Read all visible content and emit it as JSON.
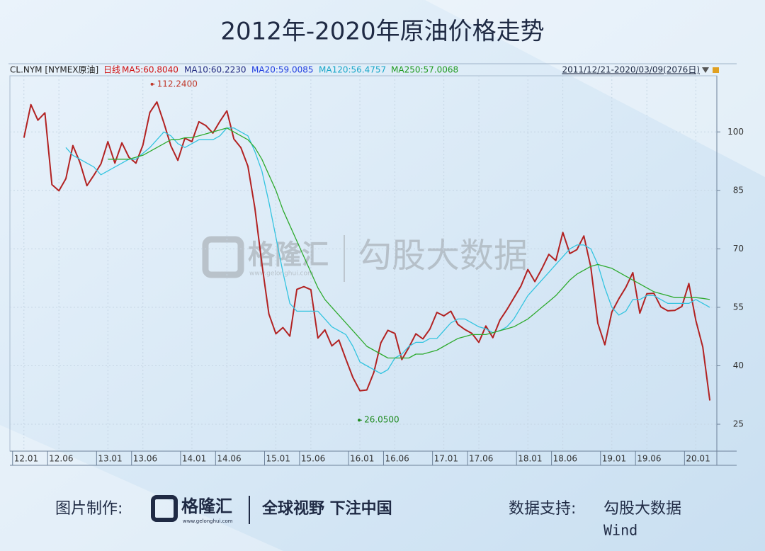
{
  "title": "2012年-2020年原油价格走势",
  "header": {
    "symbol": "CL.NYM [NYMEX原油]",
    "period": "日线",
    "ma5": "MA5:60.8040",
    "ma10": "MA10:60.2230",
    "ma20": "MA20:59.0085",
    "ma120": "MA120:56.4757",
    "ma250": "MA250:57.0068",
    "range": "2011/12/21-2020/03/09(2076日)"
  },
  "watermark": {
    "brand": "格隆汇",
    "url": "www.gelonghui.com",
    "name": "勾股大数据"
  },
  "footer": {
    "made_by": "图片制作:",
    "brand": "格隆汇",
    "url": "www.gelonghui.com",
    "slogan": "全球视野 下注中国",
    "source_label": "数据支持:",
    "source_1": "勾股大数据",
    "source_2": "Wind"
  },
  "chart_data": {
    "type": "line",
    "x": [
      0,
      1,
      2,
      3,
      4,
      5,
      6,
      7,
      8,
      9,
      10,
      11,
      12,
      13,
      14,
      15,
      16,
      17,
      18,
      19,
      20,
      21,
      22,
      23,
      24,
      25,
      26,
      27,
      28,
      29,
      30,
      31,
      32,
      33,
      34,
      35,
      36,
      37,
      38,
      39,
      40,
      41,
      42,
      43,
      44,
      45,
      46,
      47,
      48,
      49,
      50,
      51,
      52,
      53,
      54,
      55,
      56,
      57,
      58,
      59,
      60,
      61,
      62,
      63,
      64,
      65,
      66,
      67,
      68,
      69,
      70,
      71,
      72,
      73,
      74,
      75,
      76,
      77,
      78,
      79,
      80,
      81,
      82,
      83,
      84,
      85,
      86,
      87,
      88,
      89,
      90,
      91,
      92,
      93,
      94,
      95,
      96,
      97,
      98
    ],
    "series": [
      {
        "color": "#b22222",
        "values": [
          98.5,
          107,
          103,
          104.9,
          86.5,
          84.9,
          88,
          96.5,
          92.2,
          86.2,
          88.9,
          91.8,
          97.5,
          92,
          97.2,
          93.5,
          91.97,
          96.6,
          105,
          107.7,
          102.3,
          96.4,
          92.7,
          98.4,
          97.5,
          102.6,
          101.6,
          99.7,
          102.7,
          105.4,
          98.2,
          95.96,
          91.2,
          80.5,
          66.2,
          53.3,
          48.2,
          49.8,
          47.6,
          59.6,
          60.3,
          59.5,
          47.1,
          49.2,
          45.1,
          46.6,
          41.7,
          37,
          33.6,
          33.8,
          38.3,
          45.9,
          49.1,
          48.3,
          41.6,
          44.7,
          48.2,
          46.9,
          49.4,
          53.7,
          52.8,
          54,
          50.6,
          49.3,
          48.3,
          46,
          50.2,
          47.2,
          51.7,
          54.4,
          57.4,
          60.4,
          64.7,
          61.6,
          64.9,
          68.6,
          67,
          74.2,
          68.8,
          69.8,
          73.3,
          65.3,
          50.9,
          45.4,
          53.8,
          57.2,
          60.1,
          63.9,
          53.5,
          58.5,
          58.6,
          55.1,
          54.1,
          54.2,
          55.2,
          61.1,
          51.6,
          44.8,
          31.1
        ]
      },
      {
        "color": "#33c4e0",
        "values": [
          null,
          null,
          null,
          null,
          null,
          null,
          96,
          94,
          93,
          92,
          91,
          89,
          90,
          91,
          92,
          93,
          93,
          94.5,
          96,
          98,
          100,
          99,
          97,
          96,
          97,
          98,
          98,
          98,
          99,
          101,
          101,
          100,
          99,
          95,
          90,
          82,
          73,
          64,
          56,
          54,
          54,
          54,
          54,
          52,
          50,
          49,
          48,
          45,
          41,
          40,
          39,
          38,
          39,
          42,
          43,
          45,
          46,
          46,
          47,
          47,
          49,
          51,
          52,
          52,
          51,
          50,
          49.5,
          48.5,
          49,
          50,
          52,
          55,
          58,
          60,
          62,
          64,
          66,
          68,
          70,
          71,
          71,
          70,
          66,
          60,
          55,
          53,
          54,
          57,
          57,
          58,
          58,
          57,
          56,
          56,
          56,
          56,
          57,
          56,
          55
        ]
      },
      {
        "color": "#2eaa2e",
        "values": [
          null,
          null,
          null,
          null,
          null,
          null,
          null,
          null,
          null,
          null,
          null,
          null,
          93,
          93,
          93,
          93,
          93.5,
          94,
          95,
          96,
          97,
          98,
          98,
          98.5,
          98.5,
          99,
          99.5,
          100,
          100.5,
          101,
          100,
          99,
          98,
          96,
          93,
          89,
          85,
          80,
          76,
          72,
          68,
          64,
          60,
          57,
          55,
          53,
          51,
          49,
          47,
          45,
          44,
          43,
          42,
          42,
          42,
          42,
          43,
          43,
          43.5,
          44,
          45,
          46,
          47,
          47.5,
          48,
          48,
          48,
          48.5,
          49,
          49.5,
          50,
          51,
          52,
          53.5,
          55,
          56.5,
          58,
          60,
          62,
          63.5,
          64.5,
          65.5,
          66,
          65.5,
          65,
          64,
          63,
          62,
          61,
          60,
          59,
          58.5,
          58,
          57.5,
          57.5,
          57.5,
          57.5,
          57.3,
          57
        ]
      }
    ],
    "annotations": [
      {
        "x": 18.3,
        "value": 112.24,
        "label": "112.2400",
        "color": "#c0392b"
      },
      {
        "x": 47.9,
        "value": 26.05,
        "label": "26.0500",
        "color": "#1e8a1e"
      }
    ],
    "xlim": [
      -2,
      99
    ],
    "xticks": [
      {
        "value": 0,
        "label": "12.01"
      },
      {
        "value": 5,
        "label": "12.06"
      },
      {
        "value": 12,
        "label": "13.01"
      },
      {
        "value": 17,
        "label": "13.06"
      },
      {
        "value": 24,
        "label": "14.01"
      },
      {
        "value": 29,
        "label": "14.06"
      },
      {
        "value": 36,
        "label": "15.01"
      },
      {
        "value": 41,
        "label": "15.06"
      },
      {
        "value": 48,
        "label": "16.01"
      },
      {
        "value": 53,
        "label": "16.06"
      },
      {
        "value": 60,
        "label": "17.01"
      },
      {
        "value": 65,
        "label": "17.06"
      },
      {
        "value": 72,
        "label": "18.01"
      },
      {
        "value": 77,
        "label": "18.06"
      },
      {
        "value": 84,
        "label": "19.01"
      },
      {
        "value": 89,
        "label": "19.06"
      },
      {
        "value": 96,
        "label": "20.01"
      }
    ],
    "ylim": [
      18.1,
      114.4
    ],
    "yticks": [
      25,
      40,
      55,
      70,
      85,
      100
    ],
    "grid": true
  }
}
